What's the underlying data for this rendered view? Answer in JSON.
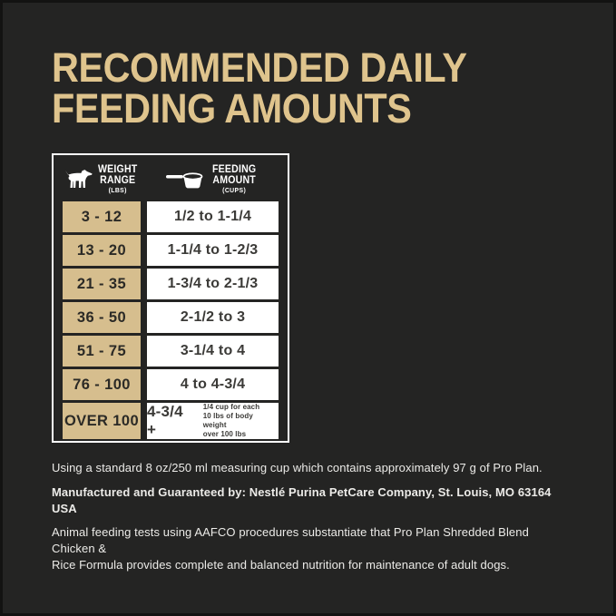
{
  "title": {
    "line1": "RECOMMENDED DAILY",
    "line2": "FEEDING AMOUNTS"
  },
  "table": {
    "headers": [
      {
        "icon": "dog-icon",
        "line1": "WEIGHT",
        "line2": "RANGE",
        "sub": "(LBS)"
      },
      {
        "icon": "measuring-cup-icon",
        "line1": "FEEDING",
        "line2": "AMOUNT",
        "sub": "(CUPS)"
      }
    ],
    "rows": [
      {
        "weight": "3 - 12",
        "amount": "1/2 to 1-1/4"
      },
      {
        "weight": "13 - 20",
        "amount": "1-1/4 to 1-2/3"
      },
      {
        "weight": "21 - 35",
        "amount": "1-3/4 to 2-1/3"
      },
      {
        "weight": "36 - 50",
        "amount": "2-1/2 to 3"
      },
      {
        "weight": "51 - 75",
        "amount": "3-1/4 to 4"
      },
      {
        "weight": "76 - 100",
        "amount": "4 to 4-3/4"
      },
      {
        "weight": "OVER 100",
        "amount": "4-3/4 +",
        "amount_note": "1/4 cup for each\n10 lbs of body weight\nover 100 lbs"
      }
    ]
  },
  "footnotes": {
    "measuring_cup": "Using a standard 8 oz/250 ml measuring cup which contains approximately 97 g of Pro Plan.",
    "manufacturer": "Manufactured and Guaranteed by: Nestlé Purina PetCare Company, St. Louis, MO 63164 USA",
    "aafco": "Animal feeding tests using AAFCO procedures substantiate that Pro Plan Shredded Blend Chicken &\nRice Formula provides complete and balanced nutrition for maintenance of adult dogs."
  },
  "colors": {
    "background": "#242423",
    "heading_gold": "#DFC48D",
    "cell_tan": "#D6BE8E",
    "cell_white": "#FFFFFF",
    "text_dark": "#2B2A26",
    "text_light": "#ECEBE8",
    "table_border": "#FFFFFF"
  },
  "chart_data": {
    "type": "table",
    "title": "RECOMMENDED DAILY FEEDING AMOUNTS",
    "columns": [
      "Weight Range (lbs)",
      "Feeding Amount (cups)"
    ],
    "rows": [
      [
        "3 - 12",
        "1/2 to 1-1/4"
      ],
      [
        "13 - 20",
        "1-1/4 to 1-2/3"
      ],
      [
        "21 - 35",
        "1-3/4 to 2-1/3"
      ],
      [
        "36 - 50",
        "2-1/2 to 3"
      ],
      [
        "51 - 75",
        "3-1/4 to 4"
      ],
      [
        "76 - 100",
        "4 to 4-3/4"
      ],
      [
        "OVER 100",
        "4-3/4 + 1/4 cup for each 10 lbs of body weight over 100 lbs"
      ]
    ]
  }
}
